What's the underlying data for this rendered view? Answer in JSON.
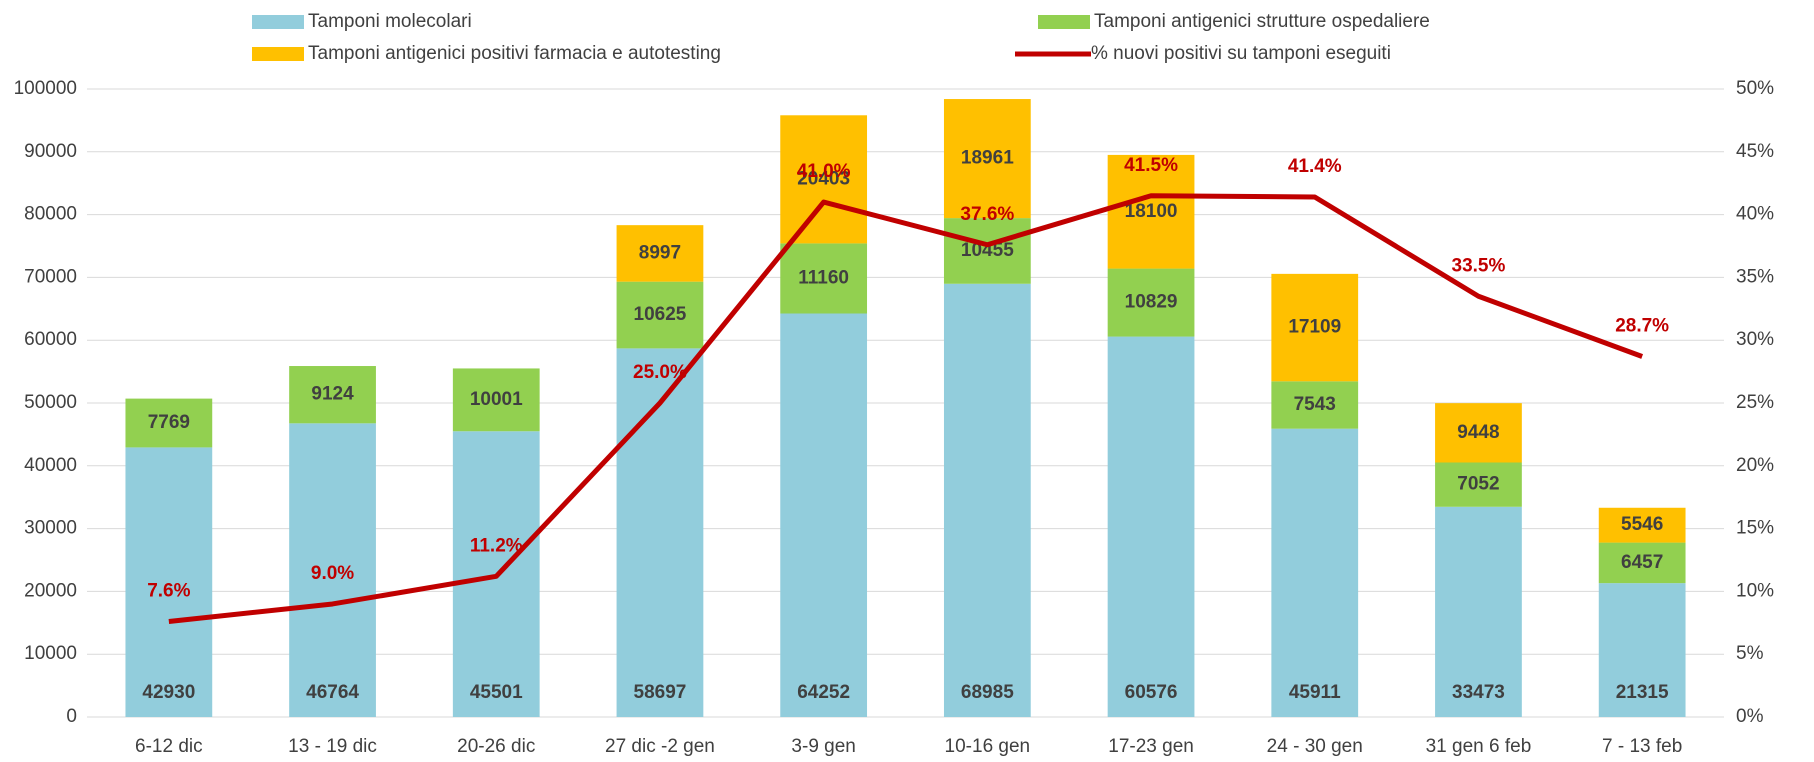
{
  "chart_data": {
    "type": "bar",
    "categories": [
      "6-12 dic",
      "13 - 19 dic",
      "20-26 dic",
      "27 dic -2 gen",
      "3-9 gen",
      "10-16 gen",
      "17-23 gen",
      "24 - 30 gen",
      "31 gen 6 feb",
      "7 - 13 feb"
    ],
    "series": [
      {
        "name": "Tamponi molecolari",
        "color": "#92cddc",
        "values": [
          42930,
          46764,
          45501,
          58697,
          64252,
          68985,
          60576,
          45911,
          33473,
          21315
        ]
      },
      {
        "name": "Tamponi antigenici strutture ospedaliere",
        "color": "#92d050",
        "values": [
          7769,
          9124,
          10001,
          10625,
          11160,
          10455,
          10829,
          7543,
          7052,
          6457
        ]
      },
      {
        "name": "Tamponi antigenici positivi farmacia e autotesting",
        "color": "#ffc000",
        "values": [
          null,
          null,
          null,
          8997,
          20403,
          18961,
          18100,
          17109,
          9448,
          5546
        ]
      },
      {
        "name": "% nuovi positivi su tamponi eseguiti",
        "color": "#c00000",
        "type": "line",
        "axis": "y2",
        "values": [
          7.6,
          9.0,
          11.2,
          25.0,
          41.0,
          37.6,
          41.5,
          41.4,
          33.5,
          28.7
        ],
        "value_labels": [
          "7.6%",
          "9.0%",
          "11.2%",
          "25.0%",
          "41.0%",
          "37.6%",
          "41.5%",
          "41.4%",
          "33.5%",
          "28.7%"
        ]
      }
    ],
    "stacked": true,
    "ylim": [
      0,
      100000
    ],
    "yticks": [
      0,
      10000,
      20000,
      30000,
      40000,
      50000,
      60000,
      70000,
      80000,
      90000,
      100000
    ],
    "y2lim": [
      0,
      50
    ],
    "y2ticks": [
      {
        "value": 0,
        "label": "0%"
      },
      {
        "value": 5,
        "label": "5%"
      },
      {
        "value": 10,
        "label": "10%"
      },
      {
        "value": 15,
        "label": "15%"
      },
      {
        "value": 20,
        "label": "20%"
      },
      {
        "value": 25,
        "label": "25%"
      },
      {
        "value": 30,
        "label": "30%"
      },
      {
        "value": 35,
        "label": "35%"
      },
      {
        "value": 40,
        "label": "40%"
      },
      {
        "value": 45,
        "label": "45%"
      },
      {
        "value": 50,
        "label": "50%"
      }
    ],
    "grid": true,
    "legend": "top"
  }
}
